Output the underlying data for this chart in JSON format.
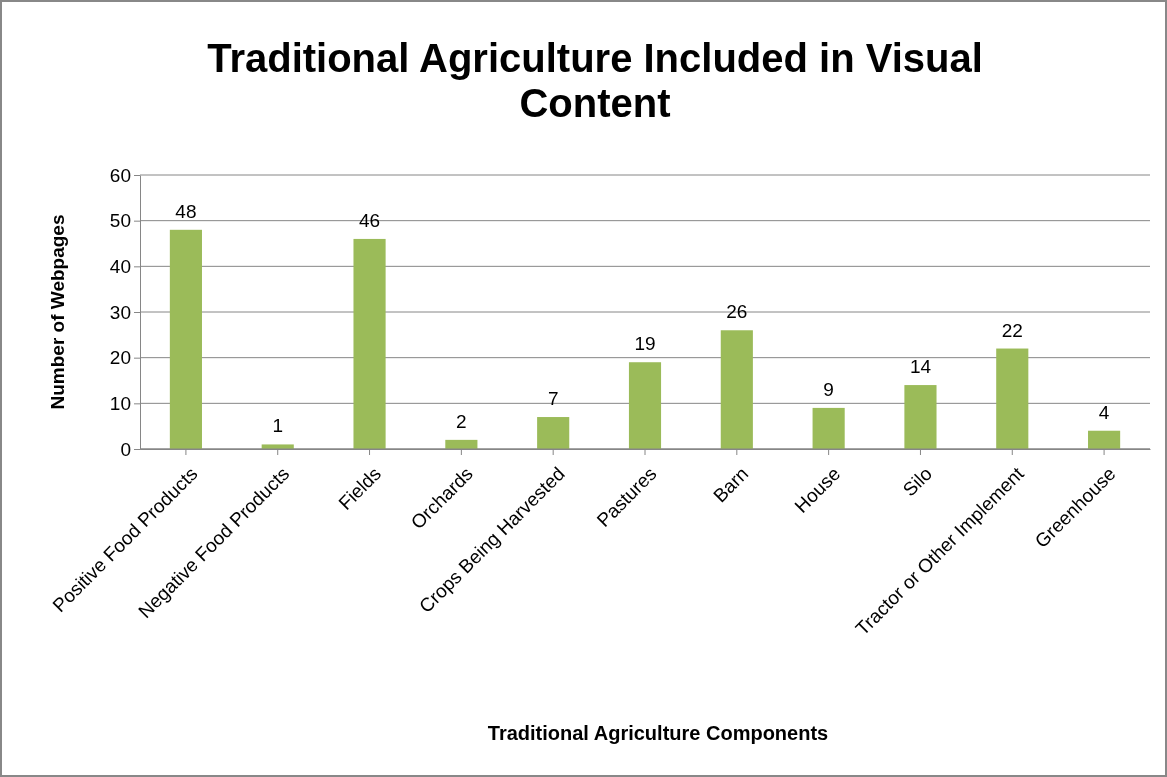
{
  "chart_data": {
    "type": "bar",
    "title": "Traditional Agriculture Included in Visual Content",
    "xlabel": "Traditional Agriculture Components",
    "ylabel": "Number of Webpages",
    "categories": [
      "Positive Food Products",
      "Negative Food Products",
      "Fields",
      "Orchards",
      "Crops Being Harvested",
      "Pastures",
      "Barn",
      "House",
      "Silo",
      "Tractor or Other Implement",
      "Greenhouse"
    ],
    "values": [
      48,
      1,
      46,
      2,
      7,
      19,
      26,
      9,
      14,
      22,
      4
    ],
    "color": "#9bbb59",
    "ylim": [
      0,
      60
    ],
    "yticks": [
      0,
      10,
      20,
      30,
      40,
      50,
      60
    ],
    "grid": "y",
    "data_labels": true
  }
}
